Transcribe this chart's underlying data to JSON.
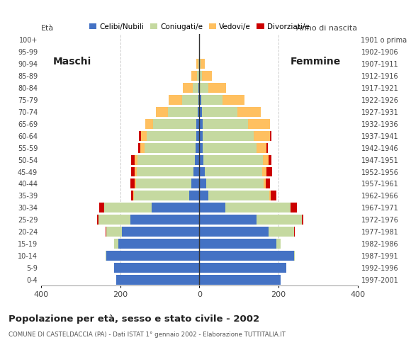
{
  "age_groups": [
    "0-4",
    "5-9",
    "10-14",
    "15-19",
    "20-24",
    "25-29",
    "30-34",
    "35-39",
    "40-44",
    "45-49",
    "50-54",
    "55-59",
    "60-64",
    "65-69",
    "70-74",
    "75-79",
    "80-84",
    "85-89",
    "90-94",
    "95-99",
    "100+"
  ],
  "birth_years": [
    "1997-2001",
    "1992-1996",
    "1987-1991",
    "1982-1986",
    "1977-1981",
    "1972-1976",
    "1967-1971",
    "1962-1966",
    "1957-1961",
    "1952-1956",
    "1947-1951",
    "1942-1946",
    "1937-1941",
    "1932-1936",
    "1927-1931",
    "1922-1926",
    "1917-1921",
    "1912-1916",
    "1907-1911",
    "1902-1906",
    "1901 o prima"
  ],
  "male": {
    "celibi": [
      210,
      215,
      235,
      205,
      195,
      175,
      120,
      25,
      20,
      14,
      11,
      9,
      8,
      7,
      5,
      3,
      2,
      1,
      1,
      0,
      0
    ],
    "coniugati": [
      0,
      0,
      2,
      10,
      40,
      80,
      120,
      140,
      140,
      145,
      145,
      130,
      125,
      110,
      75,
      40,
      15,
      5,
      2,
      0,
      0
    ],
    "vedovi": [
      0,
      0,
      0,
      0,
      0,
      0,
      1,
      2,
      3,
      5,
      8,
      10,
      15,
      20,
      30,
      35,
      25,
      15,
      5,
      1,
      0
    ],
    "divorziati": [
      0,
      0,
      0,
      0,
      2,
      3,
      12,
      5,
      12,
      8,
      8,
      5,
      5,
      0,
      0,
      0,
      0,
      0,
      0,
      0,
      0
    ]
  },
  "female": {
    "nubili": [
      205,
      220,
      240,
      195,
      175,
      145,
      65,
      22,
      18,
      14,
      10,
      9,
      8,
      8,
      6,
      4,
      2,
      1,
      1,
      0,
      0
    ],
    "coniugate": [
      0,
      0,
      2,
      10,
      65,
      115,
      165,
      155,
      145,
      145,
      150,
      135,
      130,
      115,
      90,
      55,
      20,
      5,
      2,
      0,
      0
    ],
    "vedove": [
      0,
      0,
      0,
      0,
      0,
      0,
      1,
      3,
      5,
      10,
      15,
      25,
      40,
      55,
      60,
      55,
      45,
      25,
      10,
      2,
      0
    ],
    "divorziate": [
      0,
      0,
      0,
      0,
      2,
      3,
      15,
      15,
      10,
      15,
      8,
      5,
      5,
      0,
      0,
      0,
      0,
      0,
      0,
      0,
      0
    ]
  },
  "colors": {
    "celibi": "#4472c4",
    "coniugati": "#c5d9a0",
    "vedovi": "#ffc060",
    "divorziati": "#cc0000"
  },
  "xlim": 400,
  "title": "Popolazione per età, sesso e stato civile - 2002",
  "subtitle": "COMUNE DI CASTELDACCIA (PA) - Dati ISTAT 1° gennaio 2002 - Elaborazione TUTTITALIA.IT",
  "legend_labels": [
    "Celibi/Nubili",
    "Coniugati/e",
    "Vedovi/e",
    "Divorziati/e"
  ],
  "label_maschi": "Maschi",
  "label_femmine": "Femmine",
  "label_eta": "Età",
  "label_anno": "Anno di nascita"
}
